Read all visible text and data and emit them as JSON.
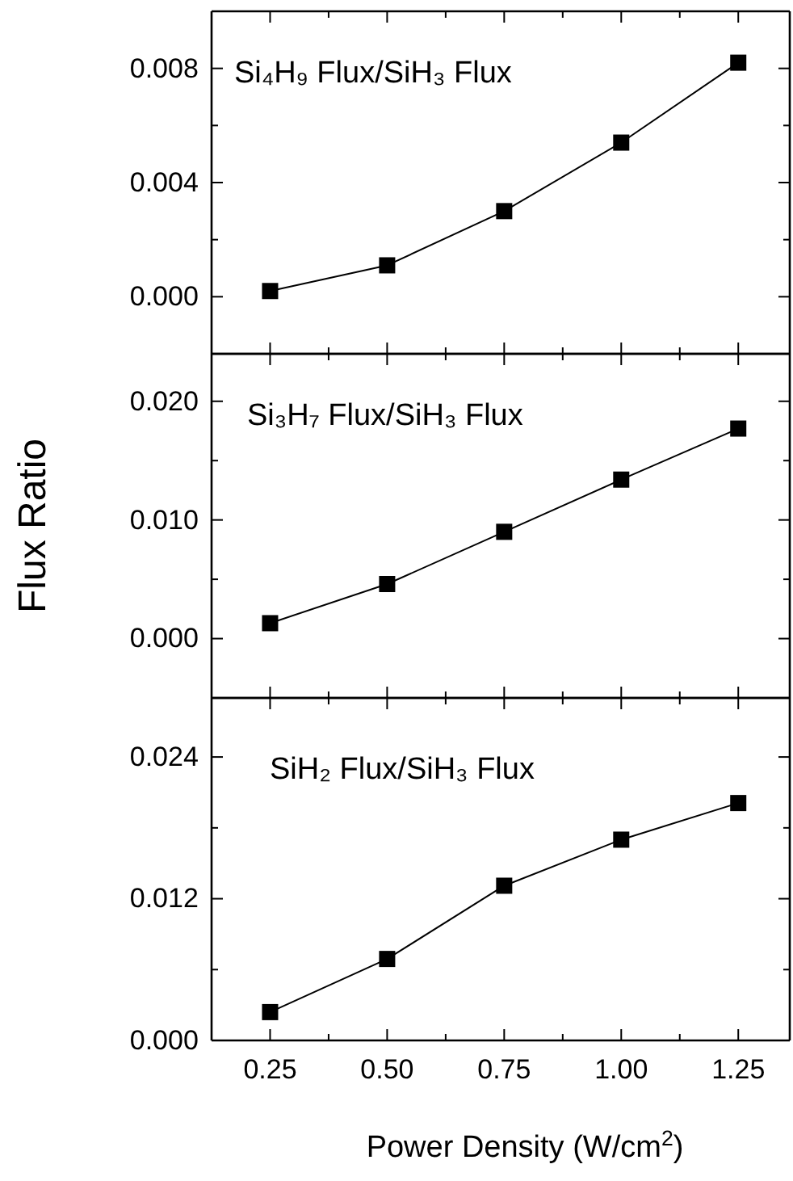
{
  "chart_data": [
    {
      "type": "line",
      "title": "Si₄H₉ Flux/SiH₃ Flux",
      "x": [
        0.25,
        0.5,
        0.75,
        1.0,
        1.25
      ],
      "series": [
        {
          "color": "#000000",
          "values": [
            0.0002,
            0.0011,
            0.003,
            0.0054,
            0.0082
          ]
        }
      ],
      "xlim": [
        0.125,
        1.36
      ],
      "xticks": [
        0.25,
        {
          "value": 0.375,
          "label": null
        },
        0.5,
        {
          "value": 0.625,
          "label": null
        },
        0.75,
        {
          "value": 0.875,
          "label": null
        },
        1.0,
        {
          "value": 1.125,
          "label": null
        },
        1.25
      ],
      "ylim": [
        -0.002,
        0.01
      ],
      "yticks": [
        {
          "value": 0,
          "label": "0.000"
        },
        {
          "value": 0.002,
          "label": null
        },
        {
          "value": 0.004,
          "label": "0.004"
        },
        {
          "value": 0.006,
          "label": null
        },
        {
          "value": 0.008,
          "label": "0.008"
        }
      ],
      "tick_labels": "y",
      "marker": "square",
      "line_style": "solid"
    },
    {
      "type": "line",
      "title": "Si₃H₇ Flux/SiH₃ Flux",
      "ylabel": "Flux Ratio",
      "x": [
        0.25,
        0.5,
        0.75,
        1.0,
        1.25
      ],
      "series": [
        {
          "color": "#000000",
          "values": [
            0.0013,
            0.0046,
            0.009,
            0.0134,
            0.0177
          ]
        }
      ],
      "xlim": [
        0.125,
        1.36
      ],
      "xticks": [
        0.25,
        {
          "value": 0.375,
          "label": null
        },
        0.5,
        {
          "value": 0.625,
          "label": null
        },
        0.75,
        {
          "value": 0.875,
          "label": null
        },
        1.0,
        {
          "value": 1.125,
          "label": null
        },
        1.25
      ],
      "ylim": [
        -0.005,
        0.024
      ],
      "yticks": [
        {
          "value": 0,
          "label": "0.000"
        },
        {
          "value": 0.005,
          "label": null
        },
        {
          "value": 0.01,
          "label": "0.010"
        },
        {
          "value": 0.015,
          "label": null
        },
        {
          "value": 0.02,
          "label": "0.020"
        }
      ],
      "tick_labels": "y",
      "marker": "square",
      "line_style": "solid"
    },
    {
      "type": "line",
      "title": "SiH₂ Flux/SiH₃ Flux",
      "xlabel": "Power Density (W/cm$^{2}$)",
      "x": [
        0.25,
        0.5,
        0.75,
        1.0,
        1.25
      ],
      "series": [
        {
          "color": "#000000",
          "values": [
            0.0024,
            0.0069,
            0.0131,
            0.017,
            0.0201
          ]
        }
      ],
      "xlim": [
        0.125,
        1.36
      ],
      "xticks": [
        {
          "value": 0.25,
          "label": "0.25"
        },
        {
          "value": 0.375,
          "label": null
        },
        {
          "value": 0.5,
          "label": "0.50"
        },
        {
          "value": 0.625,
          "label": null
        },
        {
          "value": 0.75,
          "label": "0.75"
        },
        {
          "value": 0.875,
          "label": null
        },
        {
          "value": 1.0,
          "label": "1.00"
        },
        {
          "value": 1.125,
          "label": null
        },
        {
          "value": 1.25,
          "label": "1.25"
        }
      ],
      "ylim": [
        0,
        0.029
      ],
      "yticks": [
        {
          "value": 0,
          "label": "0.000"
        },
        {
          "value": 0.006,
          "label": null
        },
        {
          "value": 0.012,
          "label": "0.012"
        },
        {
          "value": 0.018,
          "label": null
        },
        {
          "value": 0.024,
          "label": "0.024"
        }
      ],
      "marker": "square",
      "line_style": "solid"
    }
  ]
}
